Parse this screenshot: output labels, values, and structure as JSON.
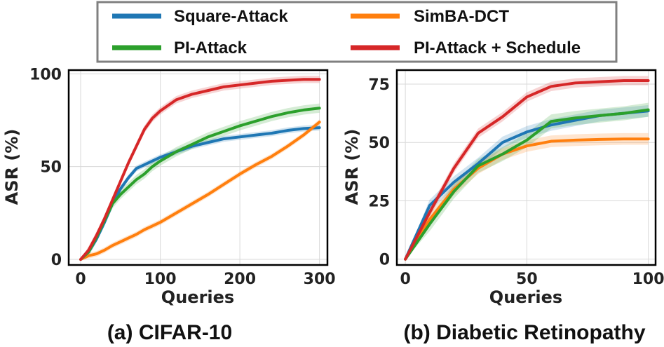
{
  "legend": {
    "entries": [
      {
        "name": "Square-Attack",
        "color": "#1f77b4"
      },
      {
        "name": "SimBA-DCT",
        "color": "#ff7f0e"
      },
      {
        "name": "PI-Attack",
        "color": "#2ca02c"
      },
      {
        "name": "PI-Attack + Schedule",
        "color": "#d62728"
      }
    ]
  },
  "chart_data": [
    {
      "type": "line",
      "caption": "(a) CIFAR-10",
      "xlabel": "Queries",
      "ylabel": "ASR (%)",
      "xlim": [
        -15,
        310
      ],
      "ylim": [
        -3,
        102
      ],
      "xticks": [
        0,
        100,
        200,
        300
      ],
      "yticks": [
        0,
        50,
        100
      ],
      "grid": true,
      "series": [
        {
          "name": "Square-Attack",
          "color": "#1f77b4",
          "x": [
            0,
            10,
            20,
            30,
            40,
            50,
            60,
            70,
            80,
            90,
            100,
            120,
            140,
            160,
            180,
            200,
            220,
            240,
            260,
            280,
            300
          ],
          "y": [
            0,
            4,
            11,
            20,
            30,
            38,
            44,
            49,
            51,
            53,
            55,
            58,
            61,
            63,
            65,
            66,
            67,
            68,
            69.5,
            70.5,
            71
          ],
          "band": 1.6
        },
        {
          "name": "SimBA-DCT",
          "color": "#ff7f0e",
          "x": [
            0,
            10,
            20,
            30,
            40,
            50,
            60,
            70,
            80,
            90,
            100,
            120,
            140,
            160,
            180,
            200,
            220,
            240,
            260,
            280,
            300
          ],
          "y": [
            0,
            2,
            3,
            5,
            7.5,
            9.5,
            11.5,
            13.5,
            16,
            18,
            20,
            25,
            30,
            35,
            40.5,
            46,
            51,
            55.5,
            61,
            67,
            74
          ],
          "band": 1.5
        },
        {
          "name": "PI-Attack",
          "color": "#2ca02c",
          "x": [
            0,
            10,
            20,
            30,
            40,
            50,
            60,
            70,
            80,
            90,
            100,
            120,
            140,
            160,
            180,
            200,
            220,
            240,
            260,
            280,
            300
          ],
          "y": [
            0,
            4,
            12,
            21,
            30,
            35,
            39,
            43,
            46,
            50,
            53,
            58,
            62,
            66,
            69,
            72,
            74.5,
            77,
            79,
            80.5,
            81.5
          ],
          "band": 2.5
        },
        {
          "name": "PI-Attack + Schedule",
          "color": "#d62728",
          "x": [
            0,
            10,
            20,
            30,
            40,
            50,
            60,
            70,
            80,
            90,
            100,
            120,
            140,
            160,
            180,
            200,
            220,
            240,
            260,
            280,
            300
          ],
          "y": [
            0,
            5,
            13,
            22,
            32,
            42,
            52,
            61,
            70,
            76,
            80,
            86,
            89,
            91,
            93,
            94,
            95,
            96,
            96.5,
            97,
            97
          ],
          "band": 2
        }
      ]
    },
    {
      "type": "line",
      "caption": "(b) Diabetic Retinopathy",
      "xlabel": "Queries",
      "ylabel": "ASR (%)",
      "xlim": [
        -3.5,
        103
      ],
      "ylim": [
        -2.5,
        81
      ],
      "xticks": [
        0,
        50,
        100
      ],
      "yticks": [
        0,
        25,
        50,
        75
      ],
      "grid": true,
      "series": [
        {
          "name": "Square-Attack",
          "color": "#1f77b4",
          "x": [
            0,
            10,
            20,
            30,
            40,
            50,
            60,
            70,
            80,
            90,
            100
          ],
          "y": [
            0,
            23,
            33,
            41,
            50,
            54.5,
            57.5,
            59.5,
            61.5,
            62.5,
            63.5
          ],
          "band": 2.5
        },
        {
          "name": "SimBA-DCT",
          "color": "#ff7f0e",
          "x": [
            0,
            10,
            20,
            30,
            40,
            50,
            60,
            70,
            80,
            90,
            100
          ],
          "y": [
            0,
            17,
            30,
            39,
            45,
            48.5,
            50.5,
            51,
            51.3,
            51.5,
            51.5
          ],
          "band": 2.5
        },
        {
          "name": "PI-Attack",
          "color": "#2ca02c",
          "x": [
            0,
            10,
            20,
            30,
            40,
            50,
            60,
            70,
            80,
            90,
            100
          ],
          "y": [
            0,
            15,
            29,
            40,
            45,
            51,
            59,
            60.5,
            61.5,
            62.5,
            64
          ],
          "band": 3
        },
        {
          "name": "PI-Attack + Schedule",
          "color": "#d62728",
          "x": [
            0,
            10,
            20,
            30,
            40,
            50,
            60,
            70,
            80,
            90,
            100
          ],
          "y": [
            0,
            20,
            39,
            54,
            61,
            69.5,
            74,
            75.5,
            76,
            76.5,
            76.5
          ],
          "band": 2
        }
      ]
    }
  ]
}
